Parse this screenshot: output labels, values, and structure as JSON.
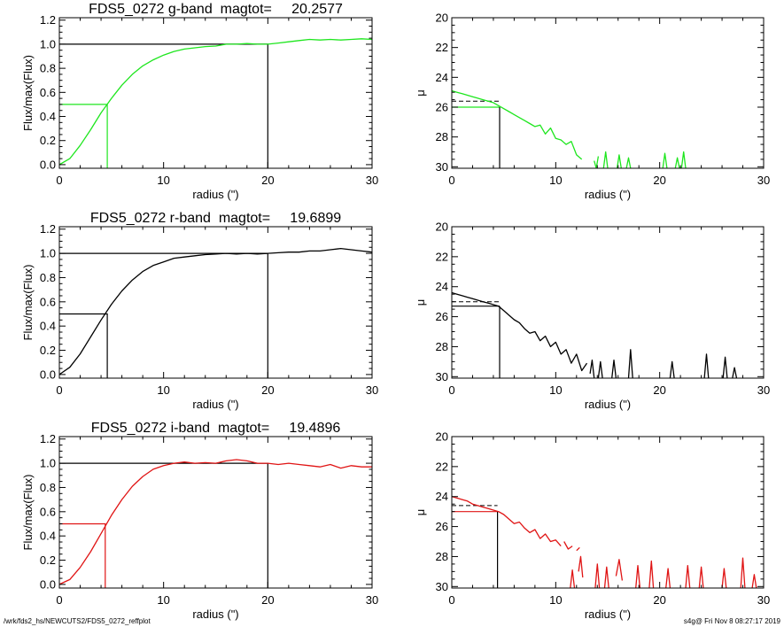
{
  "footer": {
    "path": "/wrk/fds2_hs/NEWCUTS2/FDS5_0272_reffplot",
    "stamp": "s4g@  Fri Nov  8 08:27:17 2019"
  },
  "colors": {
    "g": "#1ee61e",
    "r": "#000000",
    "i": "#e01414",
    "axes": "#000000"
  },
  "chart_data": [
    {
      "type": "line",
      "panel": "g-growth",
      "band": "g",
      "color": "#1ee61e",
      "title": "FDS5_0272 g-band  magtot=     20.2577",
      "xlabel": "radius (\")",
      "ylabel": "Flux/max(Flux)",
      "xlim": [
        0,
        30
      ],
      "ylim": [
        -0.03,
        1.22
      ],
      "xticks": [
        0,
        10,
        20,
        30
      ],
      "yticks": [
        0.0,
        0.2,
        0.4,
        0.6,
        0.8,
        1.0,
        1.2
      ],
      "ytick_labels": [
        "0.0",
        "0.2",
        "0.4",
        "0.6",
        "0.8",
        "1.0",
        "1.2"
      ],
      "curve": {
        "x": [
          0,
          1,
          2,
          3,
          4,
          5,
          6,
          7,
          8,
          9,
          10,
          11,
          12,
          13,
          14,
          15,
          16,
          17,
          18,
          19,
          20,
          21,
          22,
          23,
          24,
          25,
          26,
          27,
          28,
          29,
          30
        ],
        "y": [
          0.0,
          0.05,
          0.16,
          0.29,
          0.43,
          0.55,
          0.66,
          0.75,
          0.82,
          0.87,
          0.91,
          0.94,
          0.96,
          0.97,
          0.98,
          0.985,
          1.0,
          1.0,
          1.005,
          1.0,
          1.0,
          1.01,
          1.02,
          1.03,
          1.04,
          1.035,
          1.04,
          1.035,
          1.04,
          1.045,
          1.04
        ]
      },
      "ref_lines": [
        {
          "x": [
            0,
            20,
            20
          ],
          "y": [
            1.0,
            1.0,
            -0.03
          ],
          "color": "#000000"
        },
        {
          "x": [
            0,
            4.6,
            4.6
          ],
          "y": [
            0.5,
            0.5,
            -0.03
          ],
          "color": "#1ee61e"
        }
      ]
    },
    {
      "type": "line",
      "panel": "g-profile",
      "band": "g",
      "color": "#1ee61e",
      "xlabel": "radius (\")",
      "ylabel": "μ",
      "xlim": [
        0,
        30
      ],
      "ylim": [
        30.1,
        20
      ],
      "y_inverted": true,
      "xticks": [
        0,
        10,
        20,
        30
      ],
      "yticks": [
        20,
        22,
        24,
        26,
        28,
        30
      ],
      "ytick_labels": [
        "20",
        "22",
        "24",
        "26",
        "28",
        "30"
      ],
      "profile_segments": [
        {
          "x": [
            0,
            0.5,
            1,
            1.5,
            2,
            2.5,
            3,
            3.5,
            4,
            4.5,
            5,
            5.5,
            6,
            6.5,
            7,
            7.5,
            8,
            8.5,
            9,
            9.5,
            10,
            10.5,
            11,
            11.5,
            12,
            12.5
          ],
          "y": [
            24.9,
            25.0,
            25.1,
            25.2,
            25.3,
            25.4,
            25.5,
            25.6,
            25.7,
            25.9,
            26.1,
            26.3,
            26.5,
            26.7,
            26.9,
            27.1,
            27.3,
            27.2,
            27.8,
            27.4,
            28.1,
            28.2,
            28.5,
            28.3,
            29.2,
            29.5
          ]
        },
        {
          "x": [
            13.7,
            13.9,
            14.1
          ],
          "y": [
            29.6,
            30.1,
            29.3
          ]
        },
        {
          "x": [
            14.6,
            14.8,
            15.0
          ],
          "y": [
            30.1,
            29.0,
            30.1
          ]
        },
        {
          "x": [
            15.9,
            16.1,
            16.3
          ],
          "y": [
            30.1,
            29.2,
            30.1
          ]
        },
        {
          "x": [
            16.8,
            17.0,
            17.2
          ],
          "y": [
            30.1,
            29.4,
            30.1
          ]
        },
        {
          "x": [
            20.3,
            20.5,
            20.7
          ],
          "y": [
            30.1,
            29.1,
            30.1
          ]
        },
        {
          "x": [
            21.5,
            21.7,
            21.9
          ],
          "y": [
            30.1,
            29.4,
            30.1
          ]
        },
        {
          "x": [
            22.1,
            22.3,
            22.5
          ],
          "y": [
            30.1,
            29.0,
            30.1
          ]
        }
      ],
      "dashed_line": {
        "x": [
          0,
          4.6
        ],
        "y": [
          25.6,
          25.6
        ]
      },
      "ref_lines": [
        {
          "x": [
            0,
            4.6
          ],
          "y": [
            26.0,
            26.0
          ],
          "color": "#1ee61e"
        },
        {
          "x": [
            4.6,
            4.6
          ],
          "y": [
            26.0,
            30.1
          ],
          "color": "#000000"
        }
      ]
    },
    {
      "type": "line",
      "panel": "r-growth",
      "band": "r",
      "color": "#000000",
      "title": "FDS5_0272 r-band  magtot=     19.6899",
      "xlabel": "radius (\")",
      "ylabel": "Flux/max(Flux)",
      "xlim": [
        0,
        30
      ],
      "ylim": [
        -0.03,
        1.22
      ],
      "xticks": [
        0,
        10,
        20,
        30
      ],
      "yticks": [
        0.0,
        0.2,
        0.4,
        0.6,
        0.8,
        1.0,
        1.2
      ],
      "ytick_labels": [
        "0.0",
        "0.2",
        "0.4",
        "0.6",
        "0.8",
        "1.0",
        "1.2"
      ],
      "curve": {
        "x": [
          0,
          1,
          2,
          3,
          4,
          5,
          6,
          7,
          8,
          9,
          10,
          11,
          12,
          13,
          14,
          15,
          16,
          17,
          18,
          19,
          20,
          21,
          22,
          23,
          24,
          25,
          26,
          27,
          28,
          29,
          30
        ],
        "y": [
          0.0,
          0.06,
          0.17,
          0.31,
          0.45,
          0.58,
          0.69,
          0.78,
          0.85,
          0.9,
          0.93,
          0.96,
          0.97,
          0.98,
          0.99,
          0.995,
          1.0,
          0.995,
          1.0,
          0.995,
          1.0,
          1.005,
          1.01,
          1.01,
          1.02,
          1.02,
          1.03,
          1.04,
          1.03,
          1.02,
          1.01
        ]
      },
      "ref_lines": [
        {
          "x": [
            0,
            20,
            20
          ],
          "y": [
            1.0,
            1.0,
            -0.03
          ],
          "color": "#000000"
        },
        {
          "x": [
            0,
            4.6,
            4.6
          ],
          "y": [
            0.5,
            0.5,
            -0.03
          ],
          "color": "#000000"
        }
      ]
    },
    {
      "type": "line",
      "panel": "r-profile",
      "band": "r",
      "color": "#000000",
      "xlabel": "radius (\")",
      "ylabel": "μ",
      "xlim": [
        0,
        30
      ],
      "ylim": [
        30.1,
        20
      ],
      "y_inverted": true,
      "xticks": [
        0,
        10,
        20,
        30
      ],
      "yticks": [
        20,
        22,
        24,
        26,
        28,
        30
      ],
      "ytick_labels": [
        "20",
        "22",
        "24",
        "26",
        "28",
        "30"
      ],
      "profile_segments": [
        {
          "x": [
            0,
            0.5,
            1,
            1.5,
            2,
            2.5,
            3,
            3.5,
            4,
            4.5,
            5,
            5.5,
            6,
            6.5,
            7,
            7.5,
            8,
            8.5,
            9,
            9.5,
            10,
            10.5,
            11,
            11.5,
            12,
            12.5,
            13
          ],
          "y": [
            24.4,
            24.5,
            24.6,
            24.7,
            24.8,
            24.9,
            25.0,
            25.1,
            25.2,
            25.3,
            25.6,
            25.9,
            26.2,
            26.4,
            26.8,
            27.1,
            27.0,
            27.6,
            27.3,
            28.0,
            27.7,
            28.5,
            28.2,
            29.1,
            28.5,
            29.6,
            29.1
          ]
        },
        {
          "x": [
            13.3,
            13.5,
            13.7
          ],
          "y": [
            29.8,
            28.9,
            30.1
          ]
        },
        {
          "x": [
            14.1,
            14.3,
            14.5
          ],
          "y": [
            30.1,
            29.0,
            30.1
          ]
        },
        {
          "x": [
            15.4,
            15.6,
            15.8
          ],
          "y": [
            30.1,
            28.9,
            30.1
          ]
        },
        {
          "x": [
            17.0,
            17.2,
            17.4
          ],
          "y": [
            30.1,
            28.2,
            30.1
          ]
        },
        {
          "x": [
            21.0,
            21.2,
            21.4
          ],
          "y": [
            30.1,
            29.0,
            30.1
          ]
        },
        {
          "x": [
            24.3,
            24.5,
            24.7
          ],
          "y": [
            30.1,
            28.5,
            30.1
          ]
        },
        {
          "x": [
            26.1,
            26.3,
            26.5
          ],
          "y": [
            30.1,
            28.7,
            30.1
          ]
        },
        {
          "x": [
            27.0,
            27.2,
            27.4
          ],
          "y": [
            30.1,
            29.4,
            30.1
          ]
        }
      ],
      "dashed_line": {
        "x": [
          0,
          4.6
        ],
        "y": [
          25.0,
          25.0
        ]
      },
      "ref_lines": [
        {
          "x": [
            0,
            4.6
          ],
          "y": [
            25.3,
            25.3
          ],
          "color": "#000000"
        },
        {
          "x": [
            4.6,
            4.6
          ],
          "y": [
            25.3,
            30.1
          ],
          "color": "#000000"
        }
      ]
    },
    {
      "type": "line",
      "panel": "i-growth",
      "band": "i",
      "color": "#e01414",
      "title": "FDS5_0272 i-band  magtot=     19.4896",
      "xlabel": "radius (\")",
      "ylabel": "Flux/max(Flux)",
      "xlim": [
        0,
        30
      ],
      "ylim": [
        -0.03,
        1.22
      ],
      "xticks": [
        0,
        10,
        20,
        30
      ],
      "yticks": [
        0.0,
        0.2,
        0.4,
        0.6,
        0.8,
        1.0,
        1.2
      ],
      "ytick_labels": [
        "0.0",
        "0.2",
        "0.4",
        "0.6",
        "0.8",
        "1.0",
        "1.2"
      ],
      "curve": {
        "x": [
          0,
          1,
          2,
          3,
          4,
          5,
          6,
          7,
          8,
          9,
          10,
          11,
          12,
          13,
          14,
          15,
          16,
          17,
          18,
          19,
          20,
          21,
          22,
          23,
          24,
          25,
          26,
          27,
          28,
          29,
          30
        ],
        "y": [
          0.0,
          0.04,
          0.14,
          0.27,
          0.42,
          0.57,
          0.7,
          0.81,
          0.89,
          0.95,
          0.98,
          1.0,
          1.01,
          1.0,
          1.005,
          1.0,
          1.02,
          1.03,
          1.02,
          1.0,
          1.0,
          0.99,
          1.0,
          0.99,
          0.98,
          0.97,
          0.99,
          0.96,
          0.98,
          0.97,
          0.97
        ]
      },
      "ref_lines": [
        {
          "x": [
            0,
            20,
            20
          ],
          "y": [
            1.0,
            1.0,
            -0.03
          ],
          "color": "#000000"
        },
        {
          "x": [
            0,
            4.4,
            4.4
          ],
          "y": [
            0.5,
            0.5,
            -0.03
          ],
          "color": "#e01414"
        }
      ]
    },
    {
      "type": "line",
      "panel": "i-profile",
      "band": "i",
      "color": "#e01414",
      "xlabel": "radius (\")",
      "ylabel": "μ",
      "xlim": [
        0,
        30
      ],
      "ylim": [
        30.1,
        20
      ],
      "y_inverted": true,
      "xticks": [
        0,
        10,
        20,
        30
      ],
      "yticks": [
        20,
        22,
        24,
        26,
        28,
        30
      ],
      "ytick_labels": [
        "20",
        "22",
        "24",
        "26",
        "28",
        "30"
      ],
      "profile_segments": [
        {
          "x": [
            0,
            0.5,
            1,
            1.5,
            2,
            2.5,
            3,
            3.5,
            4,
            4.5,
            5,
            5.5,
            6,
            6.5,
            7,
            7.5,
            8,
            8.5,
            9,
            9.5,
            10,
            10.5
          ],
          "y": [
            24.0,
            24.1,
            24.2,
            24.3,
            24.5,
            24.6,
            24.7,
            24.8,
            24.9,
            25.0,
            25.2,
            25.5,
            25.8,
            25.7,
            26.1,
            26.4,
            26.2,
            26.8,
            26.5,
            27.0,
            26.9,
            27.3
          ]
        },
        {
          "x": [
            10.8,
            11.2,
            11.6
          ],
          "y": [
            27.0,
            27.5,
            27.3
          ]
        },
        {
          "x": [
            12.0,
            12.3
          ],
          "y": [
            27.6,
            27.4
          ]
        },
        {
          "x": [
            11.4,
            11.6,
            11.8
          ],
          "y": [
            30.1,
            28.9,
            30.1
          ]
        },
        {
          "x": [
            12.2,
            12.4,
            12.6
          ],
          "y": [
            29.0,
            28.0,
            29.4
          ]
        },
        {
          "x": [
            13.8,
            14.0,
            14.2
          ],
          "y": [
            30.1,
            28.5,
            30.1
          ]
        },
        {
          "x": [
            14.7,
            14.9,
            15.1
          ],
          "y": [
            30.1,
            28.7,
            30.1
          ]
        },
        {
          "x": [
            15.8,
            16.1,
            16.4
          ],
          "y": [
            29.3,
            28.2,
            29.6
          ]
        },
        {
          "x": [
            17.7,
            17.9,
            18.1
          ],
          "y": [
            30.1,
            28.6,
            30.1
          ]
        },
        {
          "x": [
            19.0,
            19.2,
            19.4
          ],
          "y": [
            30.1,
            28.3,
            30.1
          ]
        },
        {
          "x": [
            20.6,
            20.8,
            21.0
          ],
          "y": [
            30.1,
            28.8,
            30.1
          ]
        },
        {
          "x": [
            22.5,
            22.7,
            22.9
          ],
          "y": [
            30.1,
            28.6,
            30.1
          ]
        },
        {
          "x": [
            23.8,
            24.0,
            24.2
          ],
          "y": [
            30.1,
            28.7,
            30.1
          ]
        },
        {
          "x": [
            26.0,
            26.2,
            26.4
          ],
          "y": [
            30.1,
            28.8,
            30.1
          ]
        },
        {
          "x": [
            27.8,
            28.0,
            28.2
          ],
          "y": [
            30.1,
            28.1,
            30.1
          ]
        },
        {
          "x": [
            28.9,
            29.1,
            29.3
          ],
          "y": [
            30.1,
            29.2,
            30.1
          ]
        }
      ],
      "dashed_line": {
        "x": [
          0,
          4.4
        ],
        "y": [
          24.6,
          24.6
        ]
      },
      "ref_lines": [
        {
          "x": [
            0,
            4.4
          ],
          "y": [
            25.0,
            25.0
          ],
          "color": "#e01414"
        },
        {
          "x": [
            4.4,
            4.4
          ],
          "y": [
            25.0,
            30.1
          ],
          "color": "#000000"
        }
      ]
    }
  ]
}
